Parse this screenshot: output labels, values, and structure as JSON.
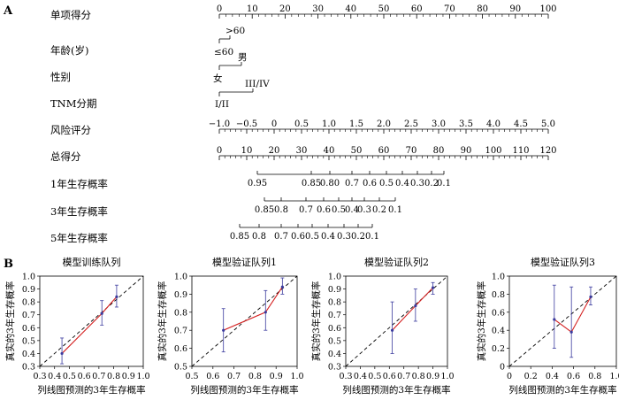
{
  "panel_a": {
    "label": "A",
    "rows": [
      {
        "label": "单项得分",
        "ticks": [
          "0",
          "10",
          "20",
          "30",
          "40",
          "50",
          "60",
          "70",
          "80",
          "90",
          "100"
        ]
      },
      {
        "label": "年龄(岁)",
        "levels": [
          ">60",
          "≤60"
        ]
      },
      {
        "label": "性别",
        "levels": [
          "男",
          "女"
        ]
      },
      {
        "label": "TNM分期",
        "levels": [
          "III/IV",
          "I/II"
        ]
      },
      {
        "label": "风险评分",
        "ticks": [
          "−1.0",
          "−0.5",
          "0",
          "0.5",
          "1.0",
          "1.5",
          "2.0",
          "2.5",
          "3.0",
          "3.5",
          "4.0",
          "4.5",
          "5.0"
        ]
      },
      {
        "label": "总得分",
        "ticks": [
          "0",
          "10",
          "20",
          "30",
          "40",
          "50",
          "60",
          "70",
          "80",
          "90",
          "100",
          "110",
          "120"
        ]
      },
      {
        "label": "1年生存概率",
        "ticks": [
          "0.95",
          "0.85",
          "0.80",
          "0.7",
          "0.6",
          "0.5",
          "0.4",
          "0.3",
          "0.2",
          "0.1"
        ]
      },
      {
        "label": "3年生存概率",
        "ticks": [
          "0.85",
          "0.8",
          "0.7",
          "0.6",
          "0.5",
          "0.4",
          "0.3",
          "0.2",
          "0.1"
        ]
      },
      {
        "label": "5年生存概率",
        "ticks": [
          "0.85",
          "0.8",
          "0.7",
          "0.6",
          "0.5",
          "0.4",
          "0.3",
          "0.2",
          "0.1"
        ]
      }
    ]
  },
  "panel_b": {
    "label": "B",
    "colors": {
      "ideal": "#000000",
      "observed": "#d42020",
      "errorbar": "#3b3b9e"
    }
  },
  "chart_data": [
    {
      "type": "line",
      "title": "模型训练队列",
      "xlabel": "列线图预测的3年生存概率",
      "ylabel": "真实的3年生存概率",
      "xlim": [
        0.3,
        1.0
      ],
      "ylim": [
        0.3,
        1.0
      ],
      "xticks": [
        "0.3",
        "0.4",
        "0.5",
        "0.6",
        "0.7",
        "0.8",
        "0.9",
        "1.0"
      ],
      "yticks": [
        "0.3",
        "0.4",
        "0.5",
        "0.6",
        "0.7",
        "0.8",
        "0.9",
        "1.0"
      ],
      "points": [
        {
          "x": 0.45,
          "y": 0.4,
          "lo": 0.32,
          "hi": 0.52
        },
        {
          "x": 0.72,
          "y": 0.71,
          "lo": 0.62,
          "hi": 0.81
        },
        {
          "x": 0.82,
          "y": 0.84,
          "lo": 0.76,
          "hi": 0.93
        }
      ]
    },
    {
      "type": "line",
      "title": "模型验证队列1",
      "xlabel": "列线图预测的3年生存概率",
      "ylabel": "真实的3年生存概率",
      "xlim": [
        0.5,
        1.0
      ],
      "ylim": [
        0.5,
        1.0
      ],
      "xticks": [
        "0.5",
        "0.6",
        "0.7",
        "0.8",
        "0.9",
        "1.0"
      ],
      "yticks": [
        "0.5",
        "0.6",
        "0.7",
        "0.8",
        "0.9",
        "1.0"
      ],
      "points": [
        {
          "x": 0.65,
          "y": 0.7,
          "lo": 0.58,
          "hi": 0.82
        },
        {
          "x": 0.85,
          "y": 0.8,
          "lo": 0.7,
          "hi": 0.92
        },
        {
          "x": 0.93,
          "y": 0.94,
          "lo": 0.9,
          "hi": 0.99
        }
      ]
    },
    {
      "type": "line",
      "title": "模型验证队列2",
      "xlabel": "列线图预测的3年生存概率",
      "ylabel": "真实的3年生存概率",
      "xlim": [
        0.3,
        1.0
      ],
      "ylim": [
        0.3,
        1.0
      ],
      "xticks": [
        "0.3",
        "0.4",
        "0.5",
        "0.6",
        "0.7",
        "0.8",
        "0.9",
        "1.0"
      ],
      "yticks": [
        "0.3",
        "0.4",
        "0.5",
        "0.6",
        "0.7",
        "0.8",
        "0.9",
        "1.0"
      ],
      "points": [
        {
          "x": 0.62,
          "y": 0.58,
          "lo": 0.4,
          "hi": 0.8
        },
        {
          "x": 0.78,
          "y": 0.77,
          "lo": 0.65,
          "hi": 0.9
        },
        {
          "x": 0.9,
          "y": 0.91,
          "lo": 0.86,
          "hi": 0.95
        }
      ]
    },
    {
      "type": "line",
      "title": "模型验证队列3",
      "xlabel": "列线图预测的3年生存概率",
      "ylabel": "真实的3年生存概率",
      "xlim": [
        0.0,
        1.0
      ],
      "ylim": [
        0.0,
        1.0
      ],
      "xticks": [
        "0",
        "0.2",
        "0.4",
        "0.6",
        "0.8",
        "1.0"
      ],
      "yticks": [
        "0",
        "0.2",
        "0.4",
        "0.6",
        "0.8",
        "1.0"
      ],
      "points": [
        {
          "x": 0.42,
          "y": 0.52,
          "lo": 0.2,
          "hi": 0.9
        },
        {
          "x": 0.58,
          "y": 0.38,
          "lo": 0.1,
          "hi": 0.88
        },
        {
          "x": 0.76,
          "y": 0.77,
          "lo": 0.68,
          "hi": 0.88
        }
      ]
    }
  ]
}
